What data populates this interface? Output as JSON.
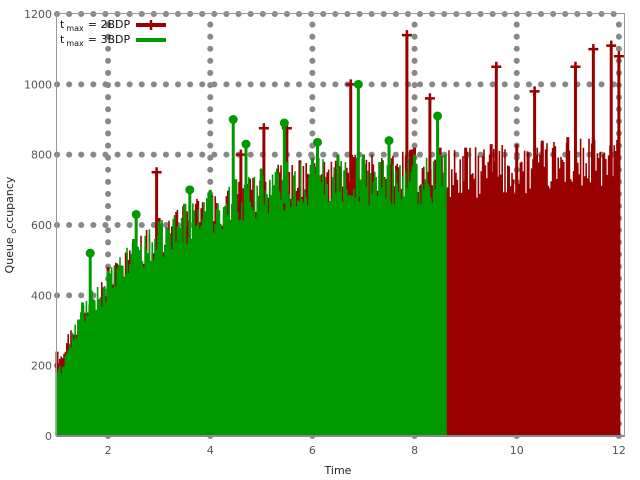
{
  "chart_data": {
    "type": "line",
    "title": "",
    "xlabel": "Time",
    "ylabel": "Queue occupancy",
    "ylabel_display": {
      "main_a": "Queue ",
      "sub": "o",
      "main_b": "ccupancy"
    },
    "xlim": [
      1,
      12.1
    ],
    "ylim": [
      0,
      1200
    ],
    "x_ticks": [
      "2",
      "4",
      "6",
      "8",
      "10",
      "12"
    ],
    "y_ticks": [
      "0",
      "200",
      "400",
      "600",
      "800",
      "1000",
      "1200"
    ],
    "grid": true,
    "legend_position": "top-left",
    "series": [
      {
        "name": "t_max = 2BDP",
        "legend": {
          "t": "t",
          "sub": "max",
          "rest": "= 2BDP"
        },
        "color": "#990000",
        "marker": "plus",
        "x_range": [
          1.0,
          12.0
        ],
        "envelope": [
          {
            "x": 1.0,
            "min": 0,
            "max": 240
          },
          {
            "x": 1.5,
            "min": 0,
            "max": 370
          },
          {
            "x": 2.0,
            "min": 0,
            "max": 480
          },
          {
            "x": 2.5,
            "min": 0,
            "max": 560
          },
          {
            "x": 3.0,
            "min": 0,
            "max": 620
          },
          {
            "x": 3.5,
            "min": 0,
            "max": 660
          },
          {
            "x": 4.0,
            "min": 0,
            "max": 690
          },
          {
            "x": 4.5,
            "min": 0,
            "max": 720
          },
          {
            "x": 5.0,
            "min": 0,
            "max": 760
          },
          {
            "x": 5.5,
            "min": 0,
            "max": 780
          },
          {
            "x": 6.0,
            "min": 0,
            "max": 790
          },
          {
            "x": 6.5,
            "min": 0,
            "max": 800
          },
          {
            "x": 7.0,
            "min": 0,
            "max": 800
          },
          {
            "x": 7.5,
            "min": 0,
            "max": 810
          },
          {
            "x": 8.0,
            "min": 0,
            "max": 820
          },
          {
            "x": 8.5,
            "min": 0,
            "max": 820
          },
          {
            "x": 9.0,
            "min": 0,
            "max": 820
          },
          {
            "x": 9.5,
            "min": 0,
            "max": 830
          },
          {
            "x": 10.0,
            "min": 0,
            "max": 830
          },
          {
            "x": 10.5,
            "min": 0,
            "max": 840
          },
          {
            "x": 11.0,
            "min": 0,
            "max": 850
          },
          {
            "x": 11.5,
            "min": 0,
            "max": 850
          },
          {
            "x": 12.0,
            "min": 0,
            "max": 850
          }
        ],
        "spikes": [
          {
            "x": 2.95,
            "y": 750
          },
          {
            "x": 4.6,
            "y": 800
          },
          {
            "x": 5.05,
            "y": 875
          },
          {
            "x": 5.5,
            "y": 875
          },
          {
            "x": 6.75,
            "y": 1000
          },
          {
            "x": 7.85,
            "y": 1140
          },
          {
            "x": 8.3,
            "y": 960
          },
          {
            "x": 9.6,
            "y": 1050
          },
          {
            "x": 10.35,
            "y": 980
          },
          {
            "x": 11.15,
            "y": 1050
          },
          {
            "x": 11.5,
            "y": 1100
          },
          {
            "x": 11.85,
            "y": 1110
          },
          {
            "x": 12.0,
            "y": 1080
          }
        ]
      },
      {
        "name": "t_max = 3BDP",
        "legend": {
          "t": "t",
          "sub": "max",
          "rest": "= 3BDP"
        },
        "color": "#009900",
        "marker": "circle",
        "x_range": [
          1.0,
          8.6
        ],
        "envelope": [
          {
            "x": 1.0,
            "min": 0,
            "max": 180
          },
          {
            "x": 1.5,
            "min": 0,
            "max": 380
          },
          {
            "x": 2.0,
            "min": 0,
            "max": 470
          },
          {
            "x": 2.5,
            "min": 0,
            "max": 560
          },
          {
            "x": 3.0,
            "min": 0,
            "max": 610
          },
          {
            "x": 3.5,
            "min": 0,
            "max": 660
          },
          {
            "x": 4.0,
            "min": 0,
            "max": 700
          },
          {
            "x": 4.5,
            "min": 0,
            "max": 730
          },
          {
            "x": 5.0,
            "min": 0,
            "max": 760
          },
          {
            "x": 5.5,
            "min": 0,
            "max": 780
          },
          {
            "x": 6.0,
            "min": 0,
            "max": 790
          },
          {
            "x": 6.5,
            "min": 0,
            "max": 800
          },
          {
            "x": 7.0,
            "min": 0,
            "max": 800
          },
          {
            "x": 7.5,
            "min": 0,
            "max": 800
          },
          {
            "x": 8.0,
            "min": 0,
            "max": 800
          },
          {
            "x": 8.5,
            "min": 0,
            "max": 800
          },
          {
            "x": 8.6,
            "min": 0,
            "max": 800
          }
        ],
        "spikes": [
          {
            "x": 1.65,
            "y": 520
          },
          {
            "x": 2.55,
            "y": 630
          },
          {
            "x": 3.6,
            "y": 700
          },
          {
            "x": 4.45,
            "y": 900
          },
          {
            "x": 4.7,
            "y": 830
          },
          {
            "x": 5.45,
            "y": 890
          },
          {
            "x": 6.1,
            "y": 835
          },
          {
            "x": 6.9,
            "y": 1000
          },
          {
            "x": 7.5,
            "y": 840
          },
          {
            "x": 8.45,
            "y": 910
          }
        ]
      }
    ]
  }
}
